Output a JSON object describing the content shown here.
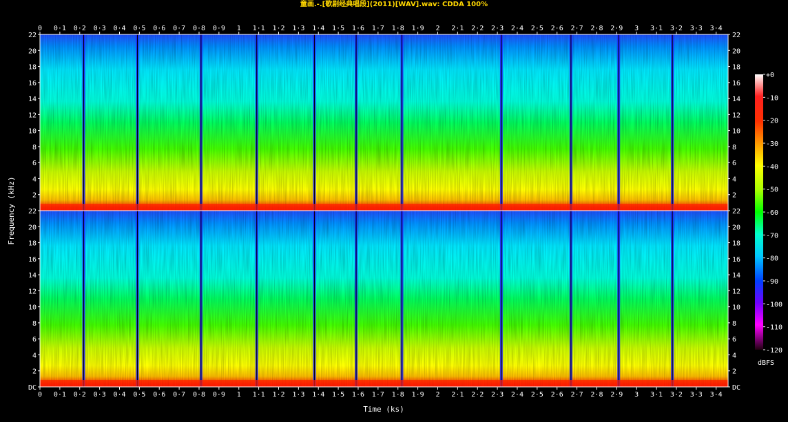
{
  "chart_data": {
    "type": "heatmap",
    "title": "童画.-.[歌剧经典唱段](2011)[WAV].wav: CDDA 100%",
    "xlabel": "Time (ks)",
    "ylabel": "Frequency (kHz)",
    "x_ticks": [
      "0",
      "0·1",
      "0·2",
      "0·3",
      "0·4",
      "0·5",
      "0·6",
      "0·7",
      "0·8",
      "0·9",
      "1",
      "1·1",
      "1·2",
      "1·3",
      "1·4",
      "1·5",
      "1·6",
      "1·7",
      "1·8",
      "1·9",
      "2",
      "2·1",
      "2·2",
      "2·3",
      "2·4",
      "2·5",
      "2·6",
      "2·7",
      "2·8",
      "2·9",
      "3",
      "3·1",
      "3·2",
      "3·3",
      "3·4"
    ],
    "xlim": [
      0,
      3.46
    ],
    "y_ticks": [
      "DC",
      "2",
      "4",
      "6",
      "8",
      "10",
      "12",
      "14",
      "16",
      "18",
      "20",
      "22"
    ],
    "ylim": [
      0,
      22
    ],
    "channels": 2,
    "colorbar": {
      "label": "dBFS",
      "ticks": [
        "+0",
        "-10",
        "-20",
        "-30",
        "-40",
        "-50",
        "-60",
        "-70",
        "-80",
        "-90",
        "-100",
        "-110",
        "-120"
      ],
      "range": [
        -120,
        0
      ]
    },
    "track_boundaries_ks": [
      0.22,
      0.49,
      0.81,
      1.09,
      1.38,
      1.59,
      1.82,
      2.32,
      2.67,
      2.91,
      3.18
    ]
  }
}
